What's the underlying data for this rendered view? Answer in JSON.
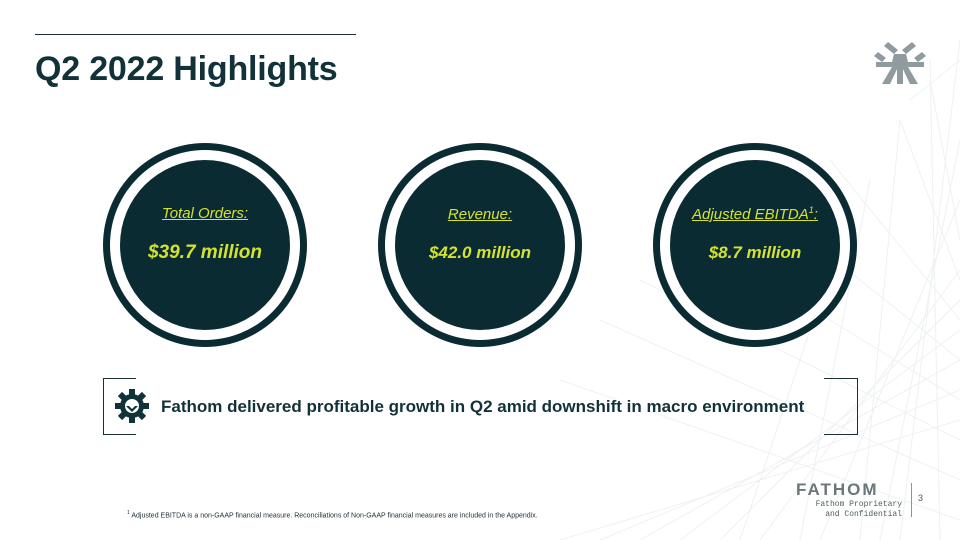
{
  "slide": {
    "title": "Q2 2022 Highlights",
    "page_number": "3"
  },
  "metrics": [
    {
      "label": "Total Orders:",
      "superscript": "",
      "value": "$39.7 million"
    },
    {
      "label": "Revenue:",
      "superscript": "",
      "value": "$42.0 million"
    },
    {
      "label": "Adjusted EBITDA",
      "superscript": "1",
      "suffix": ":",
      "value": "$8.7 million"
    }
  ],
  "callout": {
    "icon": "gear-icon",
    "text": "Fathom delivered profitable growth in Q2 amid downshift in macro environment"
  },
  "footnote": {
    "marker": "1",
    "text": " Adjusted EBITDA is a non-GAAP financial measure. Reconciliations of Non-GAAP financial measures are included in the Appendix."
  },
  "branding": {
    "wordmark": "FATHOM",
    "tagline_line1": "Fathom Proprietary",
    "tagline_line2": "and Confidential"
  },
  "colors": {
    "dark_teal": "#0b2b33",
    "accent_lime": "#d4e230",
    "text_dark": "#12323a"
  }
}
